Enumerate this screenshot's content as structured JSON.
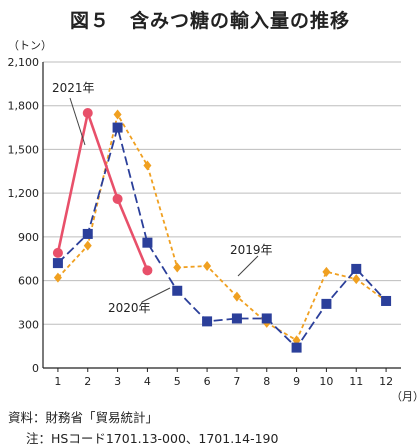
{
  "title": "図５　含みつ糖の輸入量の推移",
  "source": "資料：財務省「貿易統計」",
  "note": "注：HSコード1701.13-000、1701.14-190",
  "chart_data": {
    "type": "line",
    "ylabel": "（トン）",
    "xlabel": "（月）",
    "categories": [
      "1",
      "2",
      "3",
      "4",
      "5",
      "6",
      "7",
      "8",
      "9",
      "10",
      "11",
      "12"
    ],
    "ylim": [
      0,
      2100
    ],
    "yticks": [
      0,
      300,
      600,
      900,
      1200,
      1500,
      1800,
      2100
    ],
    "ytick_labels": [
      "0",
      "300",
      "600",
      "900",
      "1,200",
      "1,500",
      "1,800",
      "2,100"
    ],
    "grid": true,
    "series": [
      {
        "name": "2019年",
        "color": "#f0a020",
        "style": "dashed",
        "marker": "diamond",
        "values": [
          620,
          840,
          1740,
          1390,
          690,
          700,
          490,
          310,
          190,
          660,
          610,
          460
        ]
      },
      {
        "name": "2020年",
        "color": "#2b3f9a",
        "style": "dashed",
        "marker": "square",
        "values": [
          720,
          920,
          1650,
          860,
          530,
          320,
          340,
          340,
          140,
          440,
          680,
          460
        ]
      },
      {
        "name": "2021年",
        "color": "#e8506a",
        "style": "solid",
        "marker": "circle",
        "values": [
          790,
          1750,
          1160,
          670,
          null,
          null,
          null,
          null,
          null,
          null,
          null,
          null
        ]
      }
    ]
  }
}
